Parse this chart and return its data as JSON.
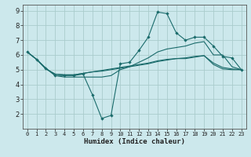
{
  "title": "",
  "xlabel": "Humidex (Indice chaleur)",
  "bg_color": "#cce8ec",
  "grid_color": "#aacccc",
  "line_color": "#1a6b6b",
  "xlim": [
    -0.5,
    23.5
  ],
  "ylim": [
    1,
    9.4
  ],
  "xticks": [
    0,
    1,
    2,
    3,
    4,
    5,
    6,
    7,
    8,
    9,
    10,
    11,
    12,
    13,
    14,
    15,
    16,
    17,
    18,
    19,
    20,
    21,
    22,
    23
  ],
  "yticks": [
    2,
    3,
    4,
    5,
    6,
    7,
    8,
    9
  ],
  "hours": [
    0,
    1,
    2,
    3,
    4,
    5,
    6,
    7,
    8,
    9,
    10,
    11,
    12,
    13,
    14,
    15,
    16,
    17,
    18,
    19,
    20,
    21,
    22,
    23
  ],
  "line1": [
    6.2,
    5.7,
    5.1,
    4.6,
    4.6,
    4.6,
    4.7,
    3.3,
    1.7,
    1.9,
    5.4,
    5.5,
    6.3,
    7.2,
    8.9,
    8.8,
    7.5,
    7.0,
    7.2,
    7.2,
    6.6,
    5.9,
    5.8,
    5.0
  ],
  "line2": [
    6.2,
    5.7,
    5.1,
    4.6,
    4.5,
    4.5,
    4.5,
    4.5,
    4.5,
    4.6,
    5.0,
    5.2,
    5.5,
    5.8,
    6.2,
    6.4,
    6.5,
    6.6,
    6.8,
    6.9,
    6.0,
    6.0,
    5.2,
    5.0
  ],
  "line3": [
    6.2,
    5.7,
    5.05,
    4.7,
    4.65,
    4.65,
    4.75,
    4.85,
    4.9,
    5.0,
    5.1,
    5.2,
    5.3,
    5.4,
    5.55,
    5.65,
    5.75,
    5.8,
    5.9,
    5.95,
    5.45,
    5.15,
    5.05,
    5.0
  ],
  "line4": [
    6.2,
    5.7,
    5.05,
    4.7,
    4.65,
    4.65,
    4.75,
    4.85,
    4.95,
    5.05,
    5.15,
    5.25,
    5.35,
    5.45,
    5.6,
    5.7,
    5.75,
    5.75,
    5.85,
    5.95,
    5.35,
    5.05,
    5.0,
    5.0
  ]
}
